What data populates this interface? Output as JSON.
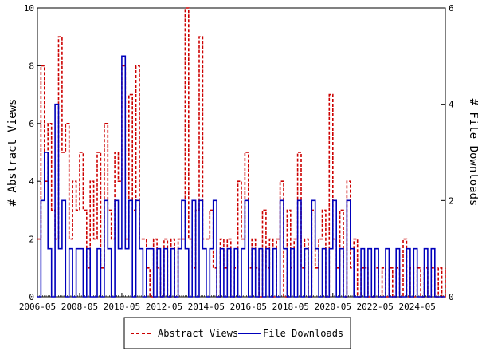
{
  "chart_data": {
    "type": "line",
    "left_axis": {
      "label": "# Abstract Views",
      "range": [
        0,
        10
      ],
      "ticks": [
        "0",
        "2",
        "4",
        "6",
        "8",
        "10"
      ]
    },
    "right_axis": {
      "label": "# File Downloads",
      "range": [
        0,
        6
      ],
      "ticks": [
        "0",
        "2",
        "4",
        "6"
      ]
    },
    "x_axis": {
      "range": [
        "2006-05",
        "2025-09"
      ],
      "tick_labels": [
        "2006-05",
        "2008-05",
        "2010-05",
        "2012-05",
        "2014-05",
        "2016-05",
        "2018-05",
        "2020-05",
        "2022-05",
        "2024-05"
      ]
    },
    "legend": {
      "placement": "bottom-center"
    },
    "grid": false,
    "colors": {
      "abstract_views": "#cc0000",
      "file_downloads": "#0000bb"
    },
    "series": [
      {
        "name": "Abstract Views",
        "axis": "left",
        "style": "dashed",
        "x": [
          "2006-05",
          "2006-07",
          "2006-09",
          "2006-11",
          "2007-01",
          "2007-03",
          "2007-05",
          "2007-07",
          "2007-09",
          "2007-11",
          "2008-01",
          "2008-03",
          "2008-05",
          "2008-07",
          "2008-09",
          "2008-11",
          "2009-01",
          "2009-03",
          "2009-05",
          "2009-07",
          "2009-09",
          "2009-11",
          "2010-01",
          "2010-03",
          "2010-05",
          "2010-07",
          "2010-09",
          "2010-11",
          "2011-01",
          "2011-03",
          "2011-05",
          "2011-07",
          "2011-09",
          "2011-11",
          "2012-01",
          "2012-03",
          "2012-05",
          "2012-07",
          "2012-09",
          "2012-11",
          "2013-01",
          "2013-03",
          "2013-05",
          "2013-07",
          "2013-09",
          "2013-11",
          "2014-01",
          "2014-03",
          "2014-05",
          "2014-07",
          "2014-09",
          "2014-11",
          "2015-01",
          "2015-03",
          "2015-05",
          "2015-07",
          "2015-09",
          "2015-11",
          "2016-01",
          "2016-03",
          "2016-05",
          "2016-07",
          "2016-09",
          "2016-11",
          "2017-01",
          "2017-03",
          "2017-05",
          "2017-07",
          "2017-09",
          "2017-11",
          "2018-01",
          "2018-03",
          "2018-05",
          "2018-07",
          "2018-09",
          "2018-11",
          "2019-01",
          "2019-03",
          "2019-05",
          "2019-07",
          "2019-09",
          "2019-11",
          "2020-01",
          "2020-03",
          "2020-05",
          "2020-07",
          "2020-09",
          "2020-11",
          "2021-01",
          "2021-03",
          "2021-05",
          "2021-07",
          "2021-09",
          "2021-11",
          "2022-01",
          "2022-03",
          "2022-05",
          "2022-07",
          "2022-09",
          "2022-11",
          "2023-01",
          "2023-03",
          "2023-05",
          "2023-07",
          "2023-09",
          "2023-11",
          "2024-01",
          "2024-03",
          "2024-05",
          "2024-07",
          "2024-09",
          "2024-11",
          "2025-01",
          "2025-03",
          "2025-05",
          "2025-07",
          "2025-09"
        ],
        "values": [
          2,
          8,
          4,
          6,
          3,
          2,
          9,
          5,
          6,
          2,
          4,
          3,
          5,
          3,
          1,
          4,
          2,
          5,
          1,
          6,
          3,
          2,
          5,
          4,
          8,
          2,
          7,
          3,
          8,
          2,
          2,
          1,
          0,
          2,
          1,
          0,
          2,
          0,
          2,
          0,
          2,
          2,
          10,
          2,
          1,
          3,
          9,
          2,
          2,
          3,
          1,
          0,
          2,
          1,
          2,
          0,
          1,
          4,
          2,
          5,
          1,
          2,
          1,
          0,
          3,
          1,
          2,
          0,
          2,
          4,
          0,
          3,
          1,
          2,
          5,
          1,
          2,
          0,
          3,
          1,
          2,
          3,
          0,
          7,
          2,
          1,
          3,
          0,
          4,
          1,
          2,
          0,
          1,
          1,
          0,
          0,
          1,
          0,
          1,
          0,
          1,
          0,
          1,
          0,
          2,
          0,
          1,
          0,
          1,
          0,
          1,
          0,
          1,
          0,
          1,
          0,
          1
        ]
      },
      {
        "name": "File Downloads",
        "axis": "right",
        "style": "solid",
        "x": [
          "2006-05",
          "2006-07",
          "2006-09",
          "2006-11",
          "2007-01",
          "2007-03",
          "2007-05",
          "2007-07",
          "2007-09",
          "2007-11",
          "2008-01",
          "2008-03",
          "2008-05",
          "2008-07",
          "2008-09",
          "2008-11",
          "2009-01",
          "2009-03",
          "2009-05",
          "2009-07",
          "2009-09",
          "2009-11",
          "2010-01",
          "2010-03",
          "2010-05",
          "2010-07",
          "2010-09",
          "2010-11",
          "2011-01",
          "2011-03",
          "2011-05",
          "2011-07",
          "2011-09",
          "2011-11",
          "2012-01",
          "2012-03",
          "2012-05",
          "2012-07",
          "2012-09",
          "2012-11",
          "2013-01",
          "2013-03",
          "2013-05",
          "2013-07",
          "2013-09",
          "2013-11",
          "2014-01",
          "2014-03",
          "2014-05",
          "2014-07",
          "2014-09",
          "2014-11",
          "2015-01",
          "2015-03",
          "2015-05",
          "2015-07",
          "2015-09",
          "2015-11",
          "2016-01",
          "2016-03",
          "2016-05",
          "2016-07",
          "2016-09",
          "2016-11",
          "2017-01",
          "2017-03",
          "2017-05",
          "2017-07",
          "2017-09",
          "2017-11",
          "2018-01",
          "2018-03",
          "2018-05",
          "2018-07",
          "2018-09",
          "2018-11",
          "2019-01",
          "2019-03",
          "2019-05",
          "2019-07",
          "2019-09",
          "2019-11",
          "2020-01",
          "2020-03",
          "2020-05",
          "2020-07",
          "2020-09",
          "2020-11",
          "2021-01",
          "2021-03",
          "2021-05",
          "2021-07",
          "2021-09",
          "2021-11",
          "2022-01",
          "2022-03",
          "2022-05",
          "2022-07",
          "2022-09",
          "2022-11",
          "2023-01",
          "2023-03",
          "2023-05",
          "2023-07",
          "2023-09",
          "2023-11",
          "2024-01",
          "2024-03",
          "2024-05",
          "2024-07",
          "2024-09",
          "2024-11",
          "2025-01",
          "2025-03",
          "2025-05",
          "2025-07",
          "2025-09"
        ],
        "values": [
          0,
          2,
          3,
          1,
          0,
          4,
          1,
          2,
          0,
          1,
          0,
          1,
          1,
          0,
          1,
          0,
          0,
          1,
          0,
          2,
          1,
          0,
          2,
          1,
          5,
          1,
          2,
          0,
          2,
          1,
          0,
          1,
          1,
          0,
          1,
          0,
          1,
          0,
          1,
          0,
          1,
          2,
          1,
          0,
          2,
          0,
          2,
          1,
          0,
          1,
          2,
          0,
          1,
          0,
          1,
          0,
          1,
          0,
          1,
          2,
          0,
          1,
          0,
          1,
          0,
          1,
          0,
          1,
          0,
          2,
          1,
          0,
          1,
          0,
          2,
          0,
          1,
          0,
          2,
          1,
          0,
          1,
          0,
          1,
          2,
          0,
          1,
          0,
          2,
          1,
          0,
          0,
          1,
          0,
          1,
          0,
          1,
          0,
          0,
          1,
          0,
          0,
          1,
          0,
          0,
          1,
          0,
          1,
          0,
          0,
          1,
          0,
          1,
          0,
          0,
          0,
          0
        ]
      }
    ]
  }
}
